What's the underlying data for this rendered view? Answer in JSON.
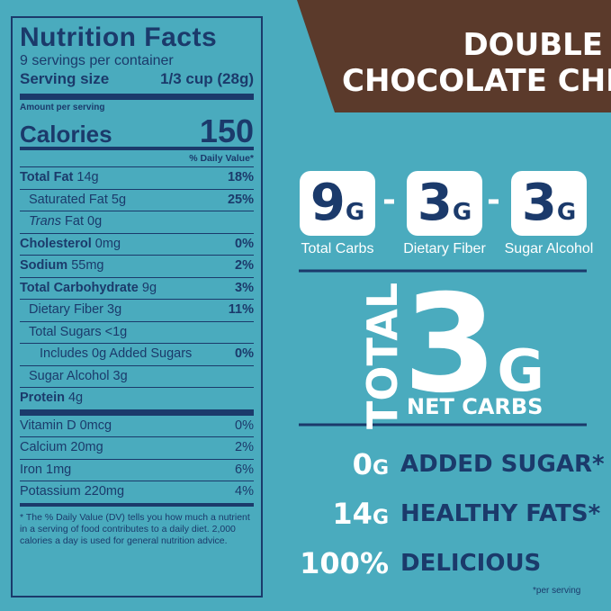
{
  "nutrition_facts": {
    "title": "Nutrition Facts",
    "servings": "9 servings per container",
    "serving_size_label": "Serving size",
    "serving_size": "1/3 cup (28g)",
    "amount_per_serving": "Amount per serving",
    "calories_label": "Calories",
    "calories": "150",
    "daily_value_header": "% Daily Value*",
    "rows": [
      {
        "name": "Total Fat",
        "amount": "14g",
        "dv": "18%"
      },
      {
        "name": "Saturated Fat",
        "amount": "5g",
        "dv": "25%"
      },
      {
        "name": "Trans",
        "amount": "Fat 0g"
      },
      {
        "name": "Cholesterol",
        "amount": "0mg",
        "dv": "0%"
      },
      {
        "name": "Sodium",
        "amount": "55mg",
        "dv": "2%"
      },
      {
        "name": "Total Carbohydrate",
        "amount": "9g",
        "dv": "3%"
      },
      {
        "name": "Dietary Fiber",
        "amount": "3g",
        "dv": "11%"
      },
      {
        "name": "Total Sugars",
        "amount": "<1g"
      },
      {
        "name": "Includes 0g Added Sugars",
        "dv": "0%"
      },
      {
        "name": "Sugar Alcohol",
        "amount": "3g"
      },
      {
        "name": "Protein",
        "amount": "4g"
      }
    ],
    "vitamins": [
      {
        "name": "Vitamin D 0mcg",
        "dv": "0%"
      },
      {
        "name": "Calcium 20mg",
        "dv": "2%"
      },
      {
        "name": "Iron 1mg",
        "dv": "6%"
      },
      {
        "name": "Potassium 220mg",
        "dv": "4%"
      }
    ],
    "footnote": "* The % Daily Value (DV) tells you how much a nutrient in a serving of food contributes to a daily diet. 2,000 calories a day is used for general nutrition advice."
  },
  "banner": {
    "line1": "DOUBLE",
    "line2": "CHOCOLATE CHIP"
  },
  "equation": {
    "operator": "-",
    "items": [
      {
        "amount": "9",
        "unit": "G",
        "label": "Total Carbs"
      },
      {
        "amount": "3",
        "unit": "G",
        "label": "Dietary Fiber"
      },
      {
        "amount": "3",
        "unit": "G",
        "label": "Sugar Alcohol"
      }
    ]
  },
  "net": {
    "total": "TOTAL",
    "amount": "3",
    "unit": "G",
    "label": "NET CARBS"
  },
  "claims": [
    {
      "amount": "0",
      "unit": "G",
      "label": "ADDED SUGAR*"
    },
    {
      "amount": "14",
      "unit": "G",
      "label": "HEALTHY FATS*"
    },
    {
      "amount": "100%",
      "label": "DELICIOUS"
    }
  ],
  "footnote": "*per serving"
}
